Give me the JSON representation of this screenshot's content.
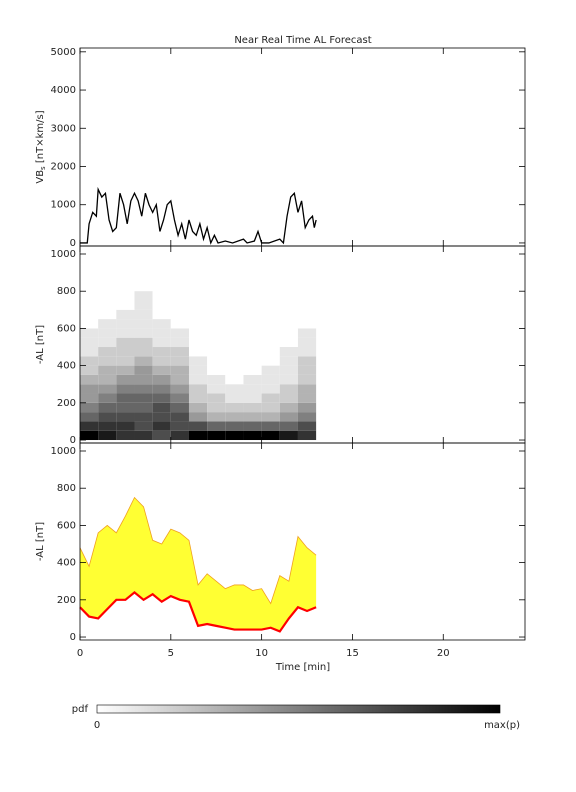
{
  "chart_data": [
    {
      "type": "line",
      "title": "Near Real Time AL Forecast",
      "ylabel": {
        "main": "VB",
        "sub": "s",
        "unit": " [nT×km/s]"
      },
      "color": "#000000",
      "x": [
        0,
        0.4,
        0.5,
        0.7,
        0.9,
        1.0,
        1.2,
        1.4,
        1.6,
        1.8,
        2.0,
        2.2,
        2.4,
        2.6,
        2.8,
        3.0,
        3.2,
        3.4,
        3.6,
        3.8,
        4.0,
        4.2,
        4.4,
        4.6,
        4.8,
        5.0,
        5.2,
        5.4,
        5.6,
        5.8,
        6.0,
        6.2,
        6.4,
        6.6,
        6.8,
        7.0,
        7.2,
        7.4,
        7.6,
        8.0,
        8.4,
        9.0,
        9.2,
        9.6,
        9.8,
        10.0,
        10.4,
        11.0,
        11.2,
        11.4,
        11.6,
        11.8,
        12.0,
        12.2,
        12.4,
        12.6,
        12.8,
        12.9,
        13.0
      ],
      "values": [
        0,
        0,
        500,
        800,
        700,
        1400,
        1200,
        1300,
        600,
        300,
        400,
        1300,
        1000,
        500,
        1100,
        1300,
        1100,
        700,
        1300,
        1000,
        800,
        1000,
        300,
        600,
        1000,
        1100,
        600,
        200,
        500,
        100,
        600,
        300,
        200,
        500,
        100,
        400,
        0,
        200,
        0,
        50,
        0,
        100,
        0,
        50,
        300,
        0,
        0,
        100,
        0,
        700,
        1200,
        1300,
        800,
        1100,
        400,
        600,
        700,
        400,
        600
      ],
      "xlim": [
        0,
        24.5
      ],
      "xticks": [
        0,
        5,
        10,
        15,
        20
      ],
      "xtick_labels": false,
      "ylim": [
        -80,
        5100
      ],
      "yticks": [
        0,
        1000,
        2000,
        3000,
        4000,
        5000
      ]
    },
    {
      "type": "heatmap",
      "ylabel": {
        "main": "-AL [nT]"
      },
      "x_edges": [
        0,
        1,
        2,
        3,
        4,
        5,
        6,
        7,
        8,
        9,
        10,
        11,
        12,
        13
      ],
      "y_edges": [
        0,
        50,
        100,
        150,
        200,
        250,
        300,
        350,
        400,
        450,
        500,
        550,
        600,
        650,
        700,
        750,
        800
      ],
      "z": [
        [
          1.0,
          0.8,
          0.6,
          0.5,
          0.4,
          0.4,
          0.3,
          0.2,
          0.2,
          0.1,
          0.1,
          0.1,
          0,
          0,
          0,
          0
        ],
        [
          0.9,
          0.8,
          0.7,
          0.6,
          0.5,
          0.4,
          0.3,
          0.3,
          0.2,
          0.2,
          0.1,
          0.1,
          0.1,
          0,
          0,
          0
        ],
        [
          0.8,
          0.8,
          0.7,
          0.6,
          0.6,
          0.5,
          0.4,
          0.3,
          0.2,
          0.2,
          0.2,
          0.1,
          0.1,
          0.1,
          0,
          0
        ],
        [
          0.8,
          0.7,
          0.7,
          0.6,
          0.6,
          0.5,
          0.4,
          0.4,
          0.3,
          0.2,
          0.2,
          0.1,
          0.1,
          0.1,
          0.1,
          0.1
        ],
        [
          0.7,
          0.8,
          0.7,
          0.7,
          0.6,
          0.5,
          0.4,
          0.3,
          0.2,
          0.2,
          0.1,
          0.1,
          0.1,
          0,
          0,
          0
        ],
        [
          0.8,
          0.7,
          0.7,
          0.6,
          0.5,
          0.4,
          0.3,
          0.3,
          0.2,
          0.2,
          0.1,
          0.1,
          0,
          0,
          0,
          0
        ],
        [
          1.0,
          0.7,
          0.4,
          0.3,
          0.2,
          0.2,
          0.1,
          0.1,
          0.1,
          0,
          0,
          0,
          0,
          0,
          0,
          0
        ],
        [
          1.0,
          0.6,
          0.3,
          0.2,
          0.2,
          0.1,
          0.1,
          0,
          0,
          0,
          0,
          0,
          0,
          0,
          0,
          0
        ],
        [
          1.0,
          0.6,
          0.3,
          0.2,
          0.1,
          0.1,
          0,
          0,
          0,
          0,
          0,
          0,
          0,
          0,
          0,
          0
        ],
        [
          1.0,
          0.6,
          0.3,
          0.2,
          0.1,
          0.1,
          0.1,
          0,
          0,
          0,
          0,
          0,
          0,
          0,
          0,
          0
        ],
        [
          1.0,
          0.6,
          0.3,
          0.2,
          0.2,
          0.1,
          0.1,
          0.1,
          0,
          0,
          0,
          0,
          0,
          0,
          0,
          0
        ],
        [
          0.9,
          0.6,
          0.4,
          0.3,
          0.2,
          0.2,
          0.1,
          0.1,
          0.1,
          0.1,
          0,
          0,
          0,
          0,
          0,
          0
        ],
        [
          0.8,
          0.7,
          0.5,
          0.4,
          0.3,
          0.3,
          0.2,
          0.2,
          0.2,
          0.1,
          0.1,
          0.1,
          0,
          0,
          0,
          0
        ]
      ],
      "xlim": [
        0,
        24.5
      ],
      "xticks": [
        0,
        5,
        10,
        15,
        20
      ],
      "xtick_labels": false,
      "ylim": [
        -16,
        1043
      ],
      "yticks": [
        0,
        200,
        400,
        600,
        800,
        1000
      ]
    },
    {
      "type": "band",
      "ylabel": {
        "main": "-AL [nT]"
      },
      "xlabel": "Time [min]",
      "x": [
        0,
        0.5,
        1,
        1.5,
        2,
        2.5,
        3,
        3.5,
        4,
        4.5,
        5,
        5.5,
        6,
        6.5,
        7,
        7.5,
        8,
        8.5,
        9,
        9.5,
        10,
        10.5,
        11,
        11.5,
        12,
        12.5,
        13
      ],
      "upper_values": [
        480,
        380,
        560,
        600,
        560,
        650,
        750,
        700,
        520,
        500,
        580,
        560,
        520,
        280,
        340,
        300,
        260,
        280,
        280,
        250,
        260,
        180,
        330,
        300,
        540,
        480,
        440
      ],
      "values": [
        160,
        110,
        100,
        150,
        200,
        200,
        240,
        200,
        230,
        190,
        220,
        200,
        190,
        60,
        70,
        60,
        50,
        40,
        40,
        40,
        40,
        50,
        30,
        100,
        160,
        140,
        160
      ],
      "band_color": "#ffff33",
      "upper_color": "#f0a020",
      "color": "#ff0000",
      "xlim": [
        0,
        24.5
      ],
      "xticks": [
        0,
        5,
        10,
        15,
        20
      ],
      "xtick_labels": true,
      "ylim": [
        -16,
        1043
      ],
      "yticks": [
        0,
        200,
        400,
        600,
        800,
        1000
      ]
    }
  ],
  "colorbar": {
    "label": "pdf",
    "min_label": "0",
    "max_label": "max(p)"
  }
}
